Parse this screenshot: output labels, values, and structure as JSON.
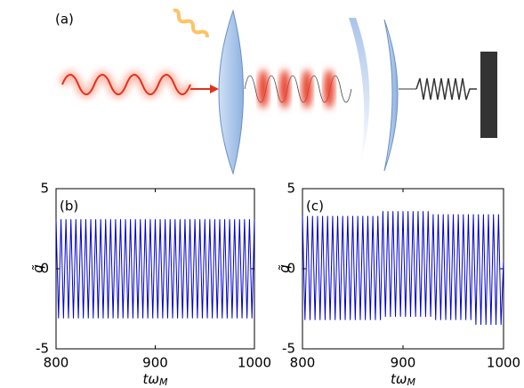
{
  "diagram": {
    "label": "(a)"
  },
  "chart_data": [
    {
      "type": "line",
      "panel_label": "(b)",
      "ylabel": "q̃",
      "xlabel": [
        "tω",
        "M"
      ],
      "color": "#0000cc",
      "xlim": [
        800,
        1000
      ],
      "xticks": [
        800,
        900,
        1000
      ],
      "ylim": [
        -5,
        5
      ],
      "yticks": [
        -5,
        0,
        5
      ],
      "x": [
        800,
        802.5,
        805,
        807.5,
        810,
        812.5,
        815,
        817.5,
        820,
        822.5,
        825,
        827.5,
        830,
        832.5,
        835,
        837.5,
        840,
        842.5,
        845,
        847.5,
        850,
        852.5,
        855,
        857.5,
        860,
        862.5,
        865,
        867.5,
        870,
        872.5,
        875,
        877.5,
        880,
        882.5,
        885,
        887.5,
        890,
        892.5,
        895,
        897.5,
        900,
        902.5,
        905,
        907.5,
        910,
        912.5,
        915,
        917.5,
        920,
        922.5,
        925,
        927.5,
        930,
        932.5,
        935,
        937.5,
        940,
        942.5,
        945,
        947.5,
        950,
        952.5,
        955,
        957.5,
        960,
        962.5,
        965,
        967.5,
        970,
        972.5,
        975,
        977.5,
        980,
        982.5,
        985,
        987.5,
        990,
        992.5,
        995,
        997.5,
        1000
      ],
      "values": [
        3.1,
        -3.1,
        3.1,
        -3.1,
        3.1,
        -3.1,
        3.1,
        -3.1,
        3.1,
        -3.1,
        3.1,
        -3.1,
        3.1,
        -3.1,
        3.1,
        -3.1,
        3.1,
        -3.1,
        3.1,
        -3.1,
        3.1,
        -3.1,
        3.1,
        -3.1,
        3.1,
        -3.1,
        3.1,
        -3.1,
        3.1,
        -3.1,
        3.1,
        -3.1,
        3.1,
        -3.1,
        3.1,
        -3.1,
        3.1,
        -3.1,
        3.1,
        -3.1,
        3.1,
        -3.1,
        3.1,
        -3.1,
        3.1,
        -3.1,
        3.1,
        -3.1,
        3.1,
        -3.1,
        3.1,
        -3.1,
        3.1,
        -3.1,
        3.1,
        -3.1,
        3.1,
        -3.1,
        3.1,
        -3.1,
        3.1,
        -3.1,
        3.1,
        -3.1,
        3.1,
        -3.1,
        3.1,
        -3.1,
        3.1,
        -3.1,
        3.1,
        -3.1,
        3.1,
        -3.1,
        3.1,
        -3.1,
        3.1,
        -3.1,
        3.1,
        -3.1,
        3.1
      ]
    },
    {
      "type": "line",
      "panel_label": "(c)",
      "ylabel": "q̃",
      "xlabel": [
        "tω",
        "M"
      ],
      "color": "#0000cc",
      "xlim": [
        800,
        1000
      ],
      "xticks": [
        800,
        900,
        1000
      ],
      "ylim": [
        -5,
        5
      ],
      "yticks": [
        -5,
        0,
        5
      ],
      "x": [
        800,
        802.5,
        805,
        807.5,
        810,
        812.5,
        815,
        817.5,
        820,
        822.5,
        825,
        827.5,
        830,
        832.5,
        835,
        837.5,
        840,
        842.5,
        845,
        847.5,
        850,
        852.5,
        855,
        857.5,
        860,
        862.5,
        865,
        867.5,
        870,
        872.5,
        875,
        877.5,
        880,
        882.5,
        885,
        887.5,
        890,
        892.5,
        895,
        897.5,
        900,
        902.5,
        905,
        907.5,
        910,
        912.5,
        915,
        917.5,
        920,
        922.5,
        925,
        927.5,
        930,
        932.5,
        935,
        937.5,
        940,
        942.5,
        945,
        947.5,
        950,
        952.5,
        955,
        957.5,
        960,
        962.5,
        965,
        967.5,
        970,
        972.5,
        975,
        977.5,
        980,
        982.5,
        985,
        987.5,
        990,
        992.5,
        995,
        997.5,
        1000
      ],
      "values": [
        3.3,
        -3.2,
        3.3,
        -3.2,
        3.3,
        -3.2,
        3.3,
        -3.2,
        3.3,
        -3.2,
        3.3,
        -3.2,
        3.3,
        -3.2,
        3.3,
        -3.2,
        3.3,
        -3.2,
        3.3,
        -3.2,
        3.3,
        -3.2,
        3.3,
        -3.2,
        3.3,
        -3.2,
        3.3,
        -3.2,
        3.3,
        -3.2,
        3.3,
        -3.2,
        3.6,
        -3.0,
        3.6,
        -3.0,
        3.6,
        -3.0,
        3.6,
        -3.0,
        3.6,
        -3.0,
        3.6,
        -3.0,
        3.6,
        -3.0,
        3.6,
        -3.0,
        3.6,
        -3.0,
        3.6,
        -3.0,
        3.4,
        -3.2,
        3.4,
        -3.2,
        3.4,
        -3.2,
        3.4,
        -3.2,
        3.4,
        -3.2,
        3.4,
        -3.2,
        3.4,
        -3.2,
        3.4,
        -3.2,
        3.4,
        -3.5,
        3.4,
        -3.5,
        3.4,
        -3.5,
        3.4,
        -3.5,
        3.4,
        -3.5,
        3.4,
        -3.5,
        0.5
      ]
    }
  ]
}
